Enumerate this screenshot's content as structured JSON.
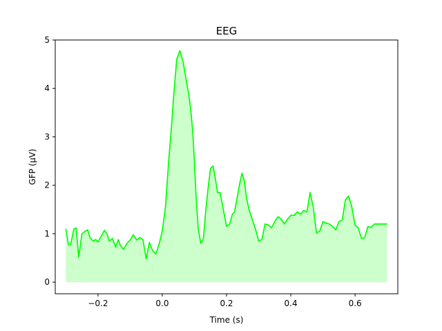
{
  "chart_data": {
    "type": "area",
    "title": "EEG",
    "xlabel": "Time (s)",
    "ylabel": "GFP (µV)",
    "xlim": [
      -0.333,
      0.733
    ],
    "ylim": [
      -0.24,
      5.0
    ],
    "xticks": [
      -0.2,
      0.0,
      0.2,
      0.4,
      0.6
    ],
    "xtick_labels": [
      "−0.2",
      "0.0",
      "0.2",
      "0.4",
      "0.6"
    ],
    "yticks": [
      0,
      1,
      2,
      3,
      4,
      5
    ],
    "ytick_labels": [
      "0",
      "1",
      "2",
      "3",
      "4",
      "5"
    ],
    "grid": false,
    "legend": "none",
    "line_color": "#00ff00",
    "fill_color": "#ccffcc",
    "series": [
      {
        "x": [
          -0.3,
          -0.292,
          -0.285,
          -0.275,
          -0.268,
          -0.26,
          -0.25,
          -0.24,
          -0.232,
          -0.225,
          -0.215,
          -0.207,
          -0.2,
          -0.19,
          -0.18,
          -0.172,
          -0.165,
          -0.155,
          -0.145,
          -0.137,
          -0.13,
          -0.12,
          -0.11,
          -0.1,
          -0.09,
          -0.08,
          -0.07,
          -0.06,
          -0.05,
          -0.04,
          -0.03,
          -0.02,
          -0.01,
          0.0,
          0.01,
          0.02,
          0.028,
          0.035,
          0.045,
          0.055,
          0.065,
          0.075,
          0.083,
          0.088,
          0.095,
          0.1,
          0.105,
          0.112,
          0.12,
          0.128,
          0.135,
          0.142,
          0.15,
          0.158,
          0.165,
          0.172,
          0.18,
          0.19,
          0.2,
          0.21,
          0.218,
          0.225,
          0.232,
          0.24,
          0.248,
          0.255,
          0.262,
          0.27,
          0.28,
          0.29,
          0.3,
          0.31,
          0.32,
          0.33,
          0.34,
          0.35,
          0.36,
          0.37,
          0.38,
          0.39,
          0.4,
          0.41,
          0.42,
          0.43,
          0.44,
          0.45,
          0.46,
          0.47,
          0.48,
          0.49,
          0.5,
          0.51,
          0.52,
          0.53,
          0.54,
          0.55,
          0.56,
          0.57,
          0.58,
          0.59,
          0.6,
          0.61,
          0.62,
          0.63,
          0.64,
          0.65,
          0.66,
          0.67,
          0.68,
          0.69,
          0.7
        ],
        "y": [
          1.1,
          0.78,
          0.78,
          1.1,
          1.12,
          0.52,
          1.0,
          1.05,
          1.08,
          0.92,
          0.85,
          0.88,
          0.83,
          0.95,
          1.07,
          1.0,
          0.85,
          0.9,
          0.72,
          0.88,
          0.75,
          0.68,
          0.8,
          0.87,
          0.98,
          0.87,
          0.92,
          0.88,
          0.48,
          0.82,
          0.65,
          0.58,
          0.78,
          1.05,
          1.55,
          2.5,
          3.15,
          3.8,
          4.6,
          4.78,
          4.55,
          4.15,
          3.85,
          3.6,
          3.1,
          2.5,
          1.8,
          1.1,
          0.8,
          0.9,
          1.45,
          1.9,
          2.35,
          2.4,
          2.15,
          1.85,
          1.85,
          1.5,
          1.15,
          1.2,
          1.4,
          1.45,
          1.7,
          2.0,
          2.25,
          2.1,
          1.75,
          1.5,
          1.3,
          1.1,
          0.85,
          0.88,
          1.2,
          1.18,
          1.12,
          1.25,
          1.35,
          1.3,
          1.2,
          1.3,
          1.38,
          1.38,
          1.45,
          1.4,
          1.48,
          1.45,
          1.85,
          1.55,
          1.02,
          1.05,
          1.25,
          1.22,
          1.2,
          1.15,
          1.08,
          1.25,
          1.28,
          1.7,
          1.78,
          1.55,
          1.18,
          1.12,
          0.9,
          0.92,
          1.15,
          1.13,
          1.2,
          1.2,
          1.2,
          1.2,
          1.2
        ]
      }
    ]
  }
}
